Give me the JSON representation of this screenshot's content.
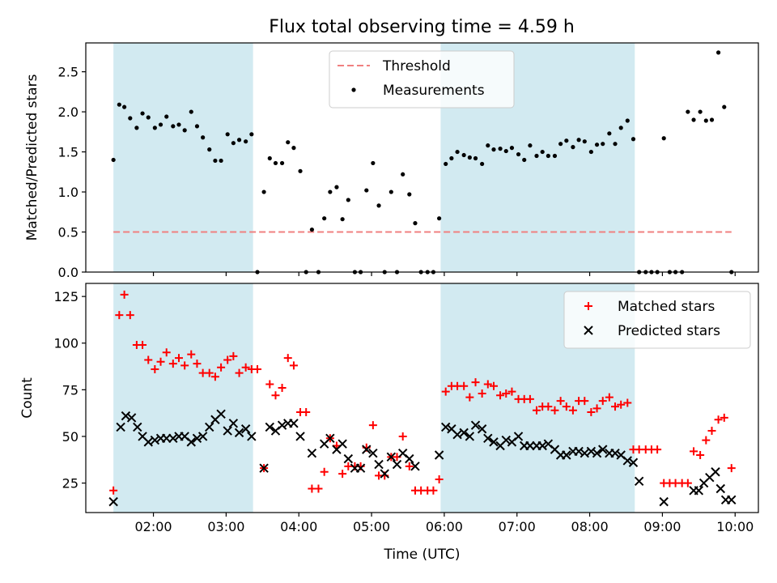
{
  "figure": {
    "title": "Flux total observing time = 4.59 h",
    "background": "#ffffff"
  },
  "styles": {
    "shade_color": "#add8e6",
    "threshold_color": "#f08080",
    "measurement_color": "#000000",
    "matched_color": "#ff0000",
    "predicted_color": "#000000"
  },
  "chart_data": [
    {
      "type": "scatter",
      "panel": "top",
      "title": "Flux total observing time = 4.59 h",
      "xlabel": "",
      "ylabel": "Matched/Predicted stars",
      "x_unit": "hours UTC",
      "xlim": [
        1.07,
        10.32
      ],
      "ylim": [
        0,
        2.86
      ],
      "yticks": [
        0.0,
        0.5,
        1.0,
        1.5,
        2.0,
        2.5
      ],
      "ytick_labels": [
        "0.0",
        "0.5",
        "1.0",
        "1.5",
        "2.0",
        "2.5"
      ],
      "xticks_hours": [
        2,
        3,
        4,
        5,
        6,
        7,
        8,
        9,
        10
      ],
      "xtick_labels": [],
      "grid": false,
      "legend_position": "top-center",
      "shaded_intervals": [
        [
          1.45,
          3.37
        ],
        [
          5.95,
          8.62
        ]
      ],
      "series": [
        {
          "name": "Threshold",
          "kind": "dashed-line",
          "x": [
            1.45,
            9.95
          ],
          "y": [
            0.5,
            0.5
          ]
        },
        {
          "name": "Measurements",
          "kind": "dots",
          "x": [
            1.45,
            1.53,
            1.6,
            1.68,
            1.77,
            1.85,
            1.93,
            2.02,
            2.1,
            2.18,
            2.27,
            2.35,
            2.43,
            2.52,
            2.6,
            2.68,
            2.77,
            2.85,
            2.93,
            3.02,
            3.1,
            3.18,
            3.27,
            3.35,
            3.43,
            3.52,
            3.6,
            3.68,
            3.77,
            3.85,
            3.93,
            4.02,
            4.1,
            4.18,
            4.27,
            4.35,
            4.43,
            4.52,
            4.6,
            4.68,
            4.77,
            4.85,
            4.93,
            5.02,
            5.1,
            5.18,
            5.27,
            5.35,
            5.43,
            5.52,
            5.6,
            5.68,
            5.77,
            5.85,
            5.93,
            6.02,
            6.1,
            6.18,
            6.27,
            6.35,
            6.43,
            6.52,
            6.6,
            6.68,
            6.77,
            6.85,
            6.93,
            7.02,
            7.1,
            7.18,
            7.27,
            7.35,
            7.43,
            7.52,
            7.6,
            7.68,
            7.77,
            7.85,
            7.93,
            8.02,
            8.1,
            8.18,
            8.27,
            8.35,
            8.43,
            8.52,
            8.6,
            8.68,
            8.77,
            8.85,
            8.93,
            9.02,
            9.1,
            9.18,
            9.27,
            9.35,
            9.43,
            9.52,
            9.6,
            9.68,
            9.77,
            9.85,
            9.95
          ],
          "y": [
            1.4,
            2.09,
            2.06,
            1.92,
            1.8,
            1.98,
            1.93,
            1.8,
            1.84,
            1.94,
            1.82,
            1.84,
            1.77,
            2.0,
            1.82,
            1.68,
            1.53,
            1.39,
            1.39,
            1.72,
            1.61,
            1.65,
            1.63,
            1.72,
            0.0,
            1.0,
            1.42,
            1.36,
            1.36,
            1.62,
            1.55,
            1.26,
            0.0,
            0.53,
            0.0,
            0.67,
            1.0,
            1.06,
            0.66,
            0.9,
            0.0,
            0.0,
            1.02,
            1.36,
            0.83,
            0.0,
            1.0,
            0.0,
            1.22,
            0.97,
            0.61,
            0.0,
            0.0,
            0.0,
            0.67,
            1.35,
            1.42,
            1.5,
            1.46,
            1.43,
            1.42,
            1.35,
            1.58,
            1.53,
            1.54,
            1.51,
            1.55,
            1.47,
            1.4,
            1.58,
            1.45,
            1.5,
            1.45,
            1.45,
            1.6,
            1.64,
            1.56,
            1.65,
            1.63,
            1.5,
            1.59,
            1.6,
            1.73,
            1.6,
            1.8,
            1.89,
            1.66,
            0.0,
            0.0,
            0.0,
            0.0,
            1.67,
            0.0,
            0.0,
            0.0,
            2.0,
            1.9,
            2.0,
            1.89,
            1.9,
            2.74,
            2.06,
            0.0
          ]
        }
      ]
    },
    {
      "type": "scatter",
      "panel": "bottom",
      "xlabel": "Time (UTC)",
      "ylabel": "Count",
      "x_unit": "hours UTC",
      "xlim": [
        1.07,
        10.32
      ],
      "ylim": [
        9.2,
        132
      ],
      "yticks": [
        25,
        50,
        75,
        100,
        125
      ],
      "ytick_labels": [
        "25",
        "50",
        "75",
        "100",
        "125"
      ],
      "xticks_hours": [
        2,
        3,
        4,
        5,
        6,
        7,
        8,
        9,
        10
      ],
      "xtick_labels": [
        "02:00",
        "03:00",
        "04:00",
        "05:00",
        "06:00",
        "07:00",
        "08:00",
        "09:00",
        "10:00"
      ],
      "grid": false,
      "legend_position": "top-right",
      "shaded_intervals": [
        [
          1.45,
          3.37
        ],
        [
          5.95,
          8.62
        ]
      ],
      "series": [
        {
          "name": "Matched stars",
          "marker": "plus",
          "x": [
            1.45,
            1.53,
            1.6,
            1.68,
            1.77,
            1.85,
            1.93,
            2.02,
            2.1,
            2.18,
            2.27,
            2.35,
            2.43,
            2.52,
            2.6,
            2.68,
            2.77,
            2.85,
            2.93,
            3.02,
            3.1,
            3.18,
            3.27,
            3.35,
            3.43,
            3.52,
            3.6,
            3.68,
            3.77,
            3.85,
            3.93,
            4.02,
            4.1,
            4.18,
            4.27,
            4.35,
            4.43,
            4.52,
            4.6,
            4.68,
            4.77,
            4.85,
            4.93,
            5.02,
            5.1,
            5.18,
            5.27,
            5.35,
            5.43,
            5.52,
            5.6,
            5.68,
            5.77,
            5.85,
            5.93,
            6.02,
            6.1,
            6.18,
            6.27,
            6.35,
            6.43,
            6.52,
            6.6,
            6.68,
            6.77,
            6.85,
            6.93,
            7.02,
            7.1,
            7.18,
            7.27,
            7.35,
            7.43,
            7.52,
            7.6,
            7.68,
            7.77,
            7.85,
            7.93,
            8.02,
            8.1,
            8.18,
            8.27,
            8.35,
            8.43,
            8.52,
            8.6,
            8.68,
            8.77,
            8.85,
            8.93,
            9.02,
            9.1,
            9.18,
            9.27,
            9.35,
            9.43,
            9.52,
            9.6,
            9.68,
            9.77,
            9.85,
            9.95
          ],
          "y": [
            21,
            115,
            126,
            115,
            99,
            99,
            91,
            86,
            90,
            95,
            89,
            92,
            88,
            94,
            89,
            84,
            84,
            82,
            87,
            91,
            93,
            84,
            87,
            86,
            86,
            33,
            78,
            72,
            76,
            92,
            88,
            63,
            63,
            22,
            22,
            31,
            49,
            45,
            30,
            34,
            34,
            34,
            44,
            56,
            29,
            29,
            39,
            39,
            50,
            34,
            21,
            21,
            21,
            21,
            27,
            74,
            77,
            77,
            77,
            71,
            79,
            73,
            78,
            77,
            72,
            73,
            74,
            70,
            70,
            70,
            64,
            66,
            66,
            64,
            69,
            66,
            64,
            69,
            69,
            63,
            65,
            69,
            71,
            66,
            67,
            68,
            43,
            43,
            43,
            43,
            43,
            25,
            25,
            25,
            25,
            25,
            42,
            40,
            48,
            53,
            59,
            60,
            33
          ],
          "marker_color": "#ff0000"
        },
        {
          "name": "Predicted stars",
          "marker": "x",
          "x": [
            1.45,
            1.55,
            1.62,
            1.7,
            1.78,
            1.85,
            1.93,
            2.02,
            2.1,
            2.18,
            2.27,
            2.35,
            2.43,
            2.52,
            2.6,
            2.68,
            2.77,
            2.85,
            2.93,
            3.02,
            3.1,
            3.18,
            3.27,
            3.35,
            3.52,
            3.6,
            3.68,
            3.77,
            3.85,
            3.93,
            4.02,
            4.18,
            4.35,
            4.43,
            4.52,
            4.6,
            4.68,
            4.77,
            4.85,
            4.93,
            5.02,
            5.1,
            5.18,
            5.27,
            5.35,
            5.43,
            5.52,
            5.6,
            5.93,
            6.02,
            6.1,
            6.18,
            6.27,
            6.35,
            6.43,
            6.52,
            6.6,
            6.68,
            6.77,
            6.85,
            6.93,
            7.02,
            7.1,
            7.18,
            7.27,
            7.35,
            7.43,
            7.52,
            7.6,
            7.68,
            7.77,
            7.85,
            7.93,
            8.02,
            8.1,
            8.18,
            8.27,
            8.35,
            8.43,
            8.52,
            8.6,
            8.68,
            9.02,
            9.43,
            9.5,
            9.57,
            9.65,
            9.73,
            9.8,
            9.87,
            9.95
          ],
          "y": [
            15,
            55,
            61,
            60,
            55,
            50,
            47,
            48,
            49,
            49,
            49,
            50,
            50,
            47,
            49,
            50,
            55,
            59,
            62,
            53,
            57,
            52,
            54,
            50,
            33,
            55,
            53,
            56,
            57,
            57,
            50,
            41,
            46,
            49,
            43,
            46,
            38,
            33,
            33,
            43,
            41,
            35,
            30,
            39,
            35,
            41,
            38,
            34,
            40,
            55,
            54,
            51,
            52,
            50,
            56,
            54,
            49,
            47,
            45,
            48,
            47,
            50,
            45,
            45,
            45,
            45,
            46,
            43,
            40,
            40,
            42,
            42,
            41,
            42,
            41,
            43,
            41,
            41,
            40,
            37,
            36,
            26,
            15,
            21,
            21,
            25,
            28,
            31,
            22,
            16,
            16
          ],
          "marker_color": "#000000"
        }
      ]
    }
  ]
}
